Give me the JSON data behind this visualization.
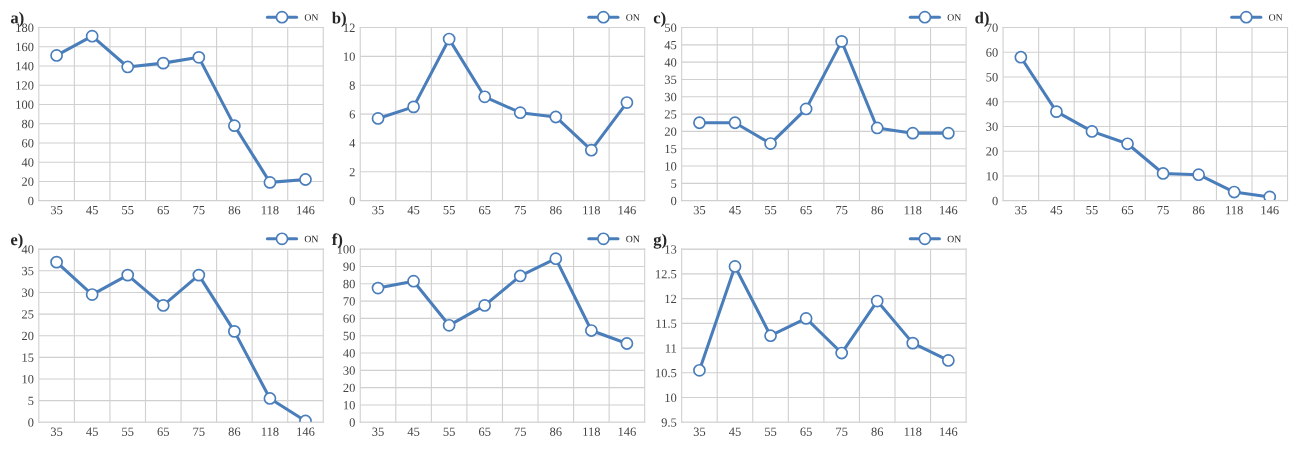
{
  "chart_data": [
    {
      "type": "line",
      "title": "a)",
      "categories": [
        "35",
        "45",
        "55",
        "65",
        "75",
        "86",
        "118",
        "146"
      ],
      "series": [
        {
          "name": "ON",
          "color": "#4a7ebb",
          "values": [
            151,
            171,
            139,
            143,
            149,
            78,
            19,
            22
          ]
        }
      ],
      "ylim": [
        0,
        180
      ],
      "yticks": [
        0,
        20,
        40,
        60,
        80,
        100,
        120,
        140,
        160,
        180
      ],
      "grid": true,
      "legend": "top right",
      "marker": "circle",
      "line_style": "solid"
    },
    {
      "type": "line",
      "title": "b)",
      "categories": [
        "35",
        "45",
        "55",
        "65",
        "75",
        "86",
        "118",
        "146"
      ],
      "series": [
        {
          "name": "ON",
          "color": "#4a7ebb",
          "values": [
            5.7,
            6.5,
            11.2,
            7.2,
            6.1,
            5.8,
            3.5,
            6.8
          ]
        }
      ],
      "ylim": [
        0,
        12
      ],
      "yticks": [
        0,
        2,
        4,
        6,
        8,
        10,
        12
      ],
      "grid": true,
      "legend": "top right",
      "marker": "circle",
      "line_style": "solid"
    },
    {
      "type": "line",
      "title": "c)",
      "categories": [
        "35",
        "45",
        "55",
        "65",
        "75",
        "86",
        "118",
        "146"
      ],
      "series": [
        {
          "name": "ON",
          "color": "#4a7ebb",
          "values": [
            22.5,
            22.5,
            16.5,
            26.5,
            46,
            21,
            19.5,
            19.5
          ]
        }
      ],
      "ylim": [
        0,
        50
      ],
      "yticks": [
        0,
        5,
        10,
        15,
        20,
        25,
        30,
        35,
        40,
        45,
        50
      ],
      "grid": true,
      "legend": "top right",
      "marker": "circle",
      "line_style": "solid"
    },
    {
      "type": "line",
      "title": "d)",
      "categories": [
        "35",
        "45",
        "55",
        "65",
        "75",
        "86",
        "118",
        "146"
      ],
      "series": [
        {
          "name": "ON",
          "color": "#4a7ebb",
          "values": [
            58,
            36,
            28,
            23,
            11,
            10.5,
            3.5,
            1.5
          ]
        }
      ],
      "ylim": [
        0,
        70
      ],
      "yticks": [
        0,
        10,
        20,
        30,
        40,
        50,
        60,
        70
      ],
      "grid": true,
      "legend": "top right",
      "marker": "circle",
      "line_style": "solid"
    },
    {
      "type": "line",
      "title": "e)",
      "categories": [
        "35",
        "45",
        "55",
        "65",
        "75",
        "86",
        "118",
        "146"
      ],
      "series": [
        {
          "name": "ON",
          "color": "#4a7ebb",
          "values": [
            37,
            29.5,
            34,
            27,
            34,
            21,
            5.5,
            0.3
          ]
        }
      ],
      "ylim": [
        0,
        40
      ],
      "yticks": [
        0,
        5,
        10,
        15,
        20,
        25,
        30,
        35,
        40
      ],
      "grid": true,
      "legend": "top right",
      "marker": "circle",
      "line_style": "solid"
    },
    {
      "type": "line",
      "title": "f)",
      "categories": [
        "35",
        "45",
        "55",
        "65",
        "75",
        "86",
        "118",
        "146"
      ],
      "series": [
        {
          "name": "ON",
          "color": "#4a7ebb",
          "values": [
            77.5,
            81.5,
            56,
            67.5,
            84.5,
            94.5,
            53,
            45.5
          ]
        }
      ],
      "ylim": [
        0,
        100
      ],
      "yticks": [
        0,
        10,
        20,
        30,
        40,
        50,
        60,
        70,
        80,
        90,
        100
      ],
      "grid": true,
      "legend": "top right",
      "marker": "circle",
      "line_style": "solid"
    },
    {
      "type": "line",
      "title": "g)",
      "categories": [
        "35",
        "45",
        "55",
        "65",
        "75",
        "86",
        "118",
        "146"
      ],
      "series": [
        {
          "name": "ON",
          "color": "#4a7ebb",
          "values": [
            10.55,
            12.65,
            11.25,
            11.6,
            10.9,
            11.95,
            11.1,
            10.75
          ]
        }
      ],
      "ylim": [
        9.5,
        13
      ],
      "yticks": [
        9.5,
        10,
        10.5,
        11,
        11.5,
        12,
        12.5,
        13
      ],
      "grid": true,
      "legend": "top right",
      "marker": "circle",
      "line_style": "solid"
    }
  ]
}
